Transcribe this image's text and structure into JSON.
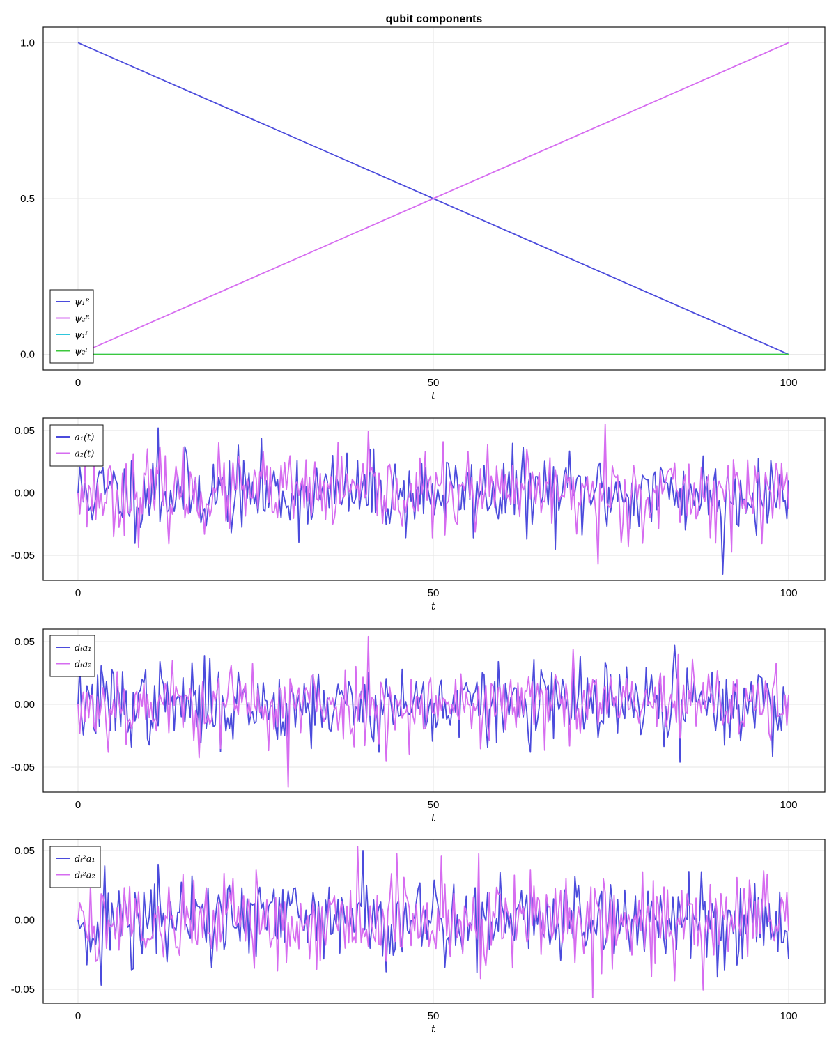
{
  "chart_data": [
    {
      "type": "line",
      "title": "qubit components",
      "xlabel": "t",
      "xlim": [
        0,
        100
      ],
      "ylim": [
        -0.05,
        1.05
      ],
      "xticks": [
        0,
        50,
        100
      ],
      "xtick_labels": [
        "0",
        "50",
        "100"
      ],
      "yticks": [
        0,
        0.5,
        1
      ],
      "ytick_labels": [
        "0.0",
        "0.5",
        "1.0"
      ],
      "grid": true,
      "legend_position": "bottom-left",
      "series": [
        {
          "name": "ψ₁ᴿ",
          "color": "#4b4bdc",
          "x": [
            0,
            100
          ],
          "y": [
            1,
            0
          ]
        },
        {
          "name": "ψ₂ᴿ",
          "color": "#d66cf0",
          "x": [
            0,
            100
          ],
          "y": [
            0,
            1
          ]
        },
        {
          "name": "ψ₁ᴵ",
          "color": "#2ec6dc",
          "x": [
            0,
            100
          ],
          "y": [
            0,
            0
          ]
        },
        {
          "name": "ψ₂ᴵ",
          "color": "#3cc83c",
          "x": [
            0,
            100
          ],
          "y": [
            0,
            0
          ]
        }
      ]
    },
    {
      "type": "line",
      "title": "",
      "xlabel": "t",
      "xlim": [
        0,
        100
      ],
      "ylim": [
        -0.07,
        0.06
      ],
      "xticks": [
        0,
        50,
        100
      ],
      "xtick_labels": [
        "0",
        "50",
        "100"
      ],
      "yticks": [
        -0.05,
        0,
        0.05
      ],
      "ytick_labels": [
        "-0.05",
        "0.00",
        "0.05"
      ],
      "grid": true,
      "legend_position": "top-left",
      "series": [
        {
          "name": "a₁(t)",
          "color": "#4b4bdc",
          "noise": {
            "points": 400,
            "amplitude": 0.016,
            "seed": 11,
            "min": -0.065,
            "max": 0.052
          }
        },
        {
          "name": "a₂(t)",
          "color": "#d66cf0",
          "noise": {
            "points": 400,
            "amplitude": 0.016,
            "seed": 23,
            "min": -0.057,
            "max": 0.055
          }
        }
      ]
    },
    {
      "type": "line",
      "title": "",
      "xlabel": "t",
      "xlim": [
        0,
        100
      ],
      "ylim": [
        -0.07,
        0.06
      ],
      "xticks": [
        0,
        50,
        100
      ],
      "xtick_labels": [
        "0",
        "50",
        "100"
      ],
      "yticks": [
        -0.05,
        0,
        0.05
      ],
      "ytick_labels": [
        "-0.05",
        "0.00",
        "0.05"
      ],
      "grid": true,
      "legend_position": "top-left",
      "series": [
        {
          "name": "dₜa₁",
          "color": "#4b4bdc",
          "noise": {
            "points": 400,
            "amplitude": 0.016,
            "seed": 37,
            "min": -0.046,
            "max": 0.047
          }
        },
        {
          "name": "dₜa₂",
          "color": "#d66cf0",
          "noise": {
            "points": 400,
            "amplitude": 0.016,
            "seed": 53,
            "min": -0.066,
            "max": 0.054
          }
        }
      ]
    },
    {
      "type": "line",
      "title": "",
      "xlabel": "t",
      "xlim": [
        0,
        100
      ],
      "ylim": [
        -0.06,
        0.058
      ],
      "xticks": [
        0,
        50,
        100
      ],
      "xtick_labels": [
        "0",
        "50",
        "100"
      ],
      "yticks": [
        -0.05,
        0,
        0.05
      ],
      "ytick_labels": [
        "-0.05",
        "0.00",
        "0.05"
      ],
      "grid": true,
      "legend_position": "top-left",
      "series": [
        {
          "name": "dₜ²a₁",
          "color": "#4b4bdc",
          "noise": {
            "points": 400,
            "amplitude": 0.017,
            "seed": 71,
            "min": -0.047,
            "max": 0.05
          }
        },
        {
          "name": "dₜ²a₂",
          "color": "#d66cf0",
          "noise": {
            "points": 400,
            "amplitude": 0.017,
            "seed": 89,
            "min": -0.056,
            "max": 0.053
          }
        }
      ]
    }
  ]
}
